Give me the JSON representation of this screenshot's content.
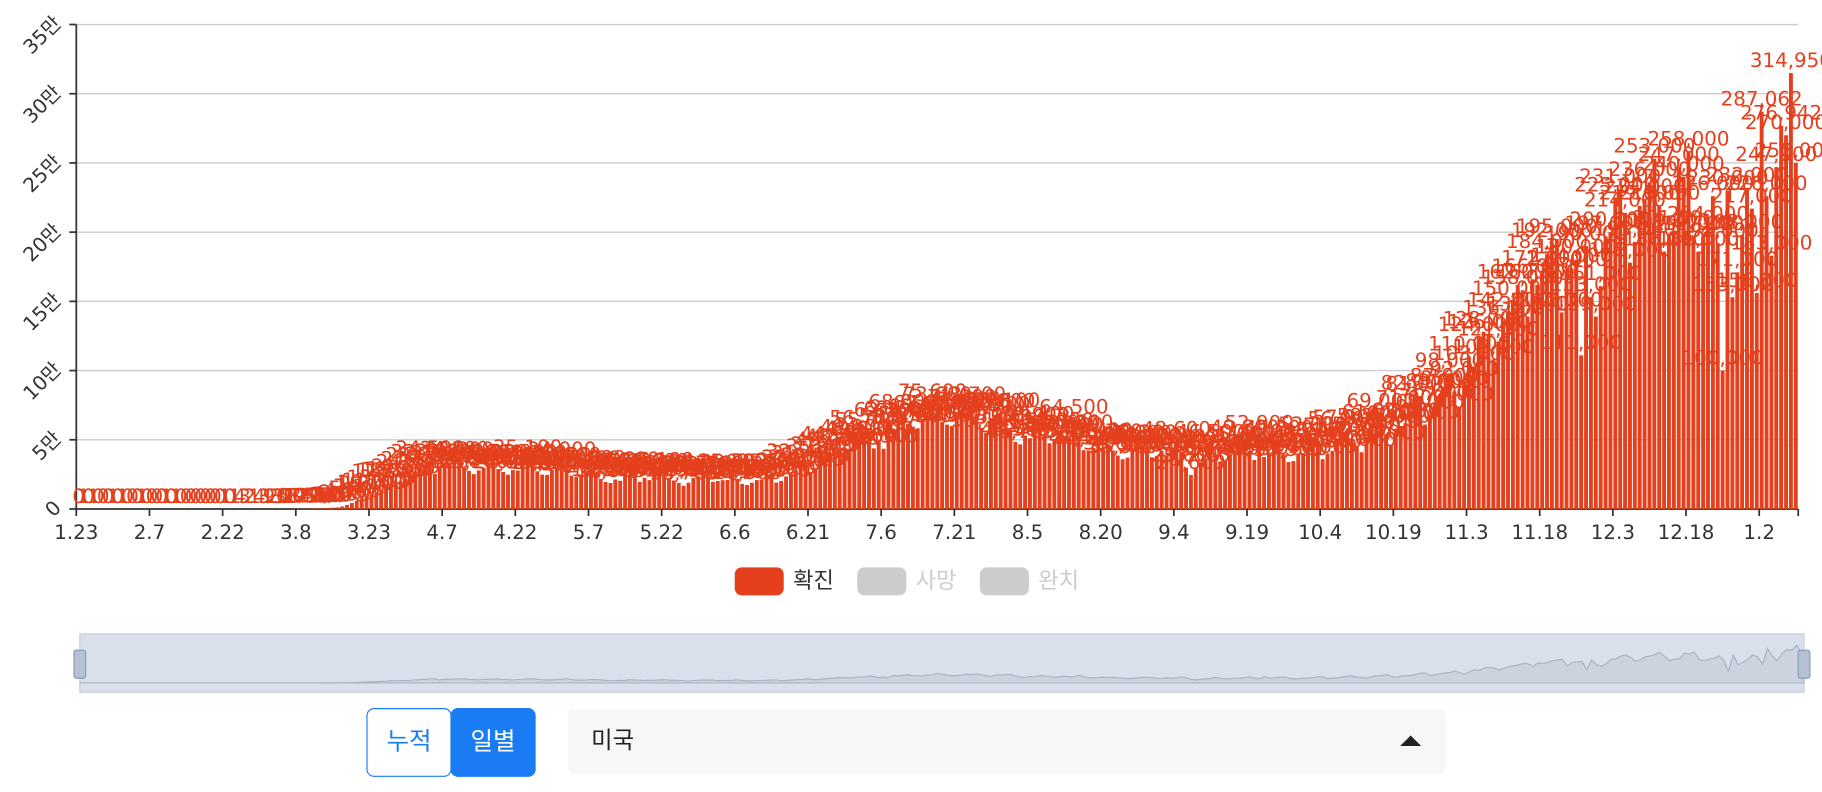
{
  "chart_data": {
    "type": "bar",
    "categories": [
      "1.23",
      null,
      null,
      null,
      null,
      null,
      null,
      null,
      null,
      null,
      null,
      null,
      null,
      null,
      null,
      "2.7",
      null,
      null,
      null,
      null,
      null,
      null,
      null,
      null,
      null,
      null,
      null,
      null,
      null,
      null,
      "2.22",
      null,
      null,
      null,
      null,
      null,
      null,
      null,
      null,
      null,
      null,
      null,
      null,
      null,
      null,
      "3.8",
      null,
      null,
      null,
      null,
      null,
      null,
      null,
      null,
      null,
      null,
      null,
      null,
      null,
      null,
      "3.23",
      null,
      null,
      null,
      null,
      null,
      null,
      null,
      null,
      null,
      null,
      null,
      null,
      null,
      null,
      "4.7",
      null,
      null,
      null,
      null,
      null,
      null,
      null,
      null,
      null,
      null,
      null,
      null,
      null,
      null,
      "4.22",
      null,
      null,
      null,
      null,
      null,
      null,
      null,
      null,
      null,
      null,
      null,
      null,
      null,
      null,
      "5.7",
      null,
      null,
      null,
      null,
      null,
      null,
      null,
      null,
      null,
      null,
      null,
      null,
      null,
      null,
      "5.22",
      null,
      null,
      null,
      null,
      null,
      null,
      null,
      null,
      null,
      null,
      null,
      null,
      null,
      null,
      "6.6",
      null,
      null,
      null,
      null,
      null,
      null,
      null,
      null,
      null,
      null,
      null,
      null,
      null,
      null,
      "6.21",
      null,
      null,
      null,
      null,
      null,
      null,
      null,
      null,
      null,
      null,
      null,
      null,
      null,
      null,
      "7.6",
      null,
      null,
      null,
      null,
      null,
      null,
      null,
      null,
      null,
      null,
      null,
      null,
      null,
      null,
      "7.21",
      null,
      null,
      null,
      null,
      null,
      null,
      null,
      null,
      null,
      null,
      null,
      null,
      null,
      null,
      "8.5",
      null,
      null,
      null,
      null,
      null,
      null,
      null,
      null,
      null,
      null,
      null,
      null,
      null,
      null,
      "8.20",
      null,
      null,
      null,
      null,
      null,
      null,
      null,
      null,
      null,
      null,
      null,
      null,
      null,
      null,
      "9.4",
      null,
      null,
      null,
      null,
      null,
      null,
      null,
      null,
      null,
      null,
      null,
      null,
      null,
      null,
      "9.19",
      null,
      null,
      null,
      null,
      null,
      null,
      null,
      null,
      null,
      null,
      null,
      null,
      null,
      null,
      "10.4",
      null,
      null,
      null,
      null,
      null,
      null,
      null,
      null,
      null,
      null,
      null,
      null,
      null,
      null,
      "10.19",
      null,
      null,
      null,
      null,
      null,
      null,
      null,
      null,
      null,
      null,
      null,
      null,
      null,
      null,
      "11.3",
      null,
      null,
      null,
      null,
      null,
      null,
      null,
      null,
      null,
      null,
      null,
      null,
      null,
      null,
      "11.18",
      null,
      null,
      null,
      null,
      null,
      null,
      null,
      null,
      null,
      null,
      null,
      null,
      null,
      null,
      "12.3",
      null,
      null,
      null,
      null,
      null,
      null,
      null,
      null,
      null,
      null,
      null,
      null,
      null,
      null,
      "12.18",
      null,
      null,
      null,
      null,
      null,
      null,
      null,
      null,
      null,
      null,
      null,
      null,
      null,
      null,
      "1.2",
      null,
      null,
      null,
      null,
      null,
      null,
      null
    ],
    "series": [
      {
        "name": "확진",
        "color": "#e5401d",
        "values": [
          0,
          1,
          0,
          1,
          0,
          0,
          0,
          1,
          0,
          1,
          0,
          0,
          0,
          1,
          0,
          0,
          0,
          0,
          1,
          0,
          1,
          0,
          0,
          0,
          0,
          0,
          0,
          0,
          0,
          0,
          1,
          0,
          1,
          4,
          3,
          2,
          1,
          4,
          3,
          9,
          13,
          20,
          31,
          68,
          79,
          105,
          120,
          180,
          290,
          430,
          560,
          730,
          960,
          1200,
          1800,
          2900,
          4300,
          5800,
          7100,
          9200,
          10100,
          11300,
          13700,
          17800,
          18500,
          19500,
          19900,
          21500,
          24800,
          27100,
          29800,
          32100,
          34500,
          25300,
          30100,
          31400,
          32500,
          34100,
          33800,
          29700,
          27600,
          25200,
          27900,
          29600,
          31800,
          31900,
          28800,
          26800,
          24800,
          28100,
          27800,
          31900,
          35100,
          31200,
          27200,
          24800,
          24600,
          28300,
          29700,
          34000,
          29800,
          24100,
          23400,
          24500,
          27400,
          27600,
          25800,
          21800,
          19500,
          18800,
          21300,
          20400,
          26600,
          25100,
          24200,
          19600,
          22500,
          20900,
          25600,
          26100,
          23300,
          21800,
          20600,
          18900,
          16700,
          19000,
          22400,
          23700,
          24900,
          23300,
          19600,
          20200,
          20800,
          21000,
          25300,
          21700,
          18100,
          17300,
          19000,
          20900,
          21300,
          25100,
          25100,
          19100,
          20300,
          23500,
          25700,
          27900,
          32500,
          31400,
          26700,
          29500,
          35900,
          37400,
          40900,
          44900,
          43200,
          42300,
          43500,
          49900,
          49000,
          56700,
          55000,
          43800,
          48600,
          43500,
          62200,
          58100,
          63500,
          68000,
          61700,
          59500,
          58300,
          65000,
          67400,
          75600,
          73600,
          63000,
          61000,
          59900,
          66700,
          71900,
          69800,
          73700,
          68600,
          58700,
          55100,
          65600,
          66800,
          68800,
          69100,
          57400,
          48500,
          46700,
          53100,
          51200,
          58900,
          59400,
          53200,
          47500,
          50100,
          54800,
          52700,
          51400,
          64500,
          53200,
          42500,
          42300,
          44100,
          47400,
          44600,
          46700,
          42300,
          38600,
          35900,
          37100,
          43000,
          45800,
          46200,
          43900,
          37400,
          38400,
          42000,
          38700,
          42800,
          48600,
          41400,
          29800,
          24600,
          30000,
          33800,
          36300,
          46500,
          39200,
          34400,
          34900,
          38800,
          39100,
          45000,
          49800,
          41900,
          35400,
          52900,
          37600,
          40100,
          46900,
          49300,
          39600,
          33900,
          34600,
          40100,
          40400,
          45000,
          52000,
          48000,
          36000,
          40000,
          42000,
          51000,
          56000,
          57000,
          48000,
          45000,
          41000,
          52000,
          58000,
          61000,
          69000,
          54000,
          46000,
          58000,
          60000,
          62000,
          71000,
          82000,
          81000,
          61000,
          68000,
          76000,
          83000,
          87000,
          98000,
          85000,
          74000,
          92000,
          110000,
          103000,
          124000,
          128000,
          126000,
          108000,
          121000,
          136000,
          142000,
          150000,
          162000,
          158000,
          139000,
          166000,
          162000,
          172000,
          184000,
          192000,
          195000,
          142000,
          171000,
          174000,
          180000,
          111000,
          190000,
          153000,
          139000,
          161000,
          197000,
          200000,
          225000,
          231000,
          214000,
          178000,
          193000,
          219000,
          224000,
          236000,
          253000,
          219000,
          186000,
          199000,
          201000,
          247000,
          240000,
          258000,
          197000,
          186000,
          197000,
          204000,
          226000,
          192000,
          100000,
          230000,
          153000,
          171000,
          198000,
          232000,
          217000,
          156000,
          287062,
          226000,
          183000,
          247000,
          276942,
          270000,
          314950,
          250000
        ],
        "value_labels": [
          "0",
          "1",
          "0",
          "1",
          "0",
          "0",
          "0",
          "1",
          "0",
          "1",
          "0",
          "0",
          "0",
          "1",
          "0",
          "0",
          "0",
          "0",
          "1",
          "0",
          "1",
          "0",
          "0",
          "0",
          "0",
          "0",
          "0",
          "0",
          "0",
          "0",
          "1",
          "0",
          "1",
          "4",
          "3",
          "2",
          "1",
          "4",
          "3",
          "9",
          "13",
          "20",
          "31",
          "68",
          "79",
          "105",
          "120",
          "180",
          "290",
          "430",
          "560",
          "730",
          "960",
          "1,200",
          "1,800",
          "2,900",
          "4,300",
          "5,800",
          "7,100",
          "9,200",
          "10,100",
          "11,300",
          "13,700",
          "17,800",
          "18,500",
          "19,500",
          "19,900",
          "21,500",
          "24,800",
          "27,100",
          "29,800",
          "32,100",
          "34,500",
          "25,300",
          "30,100",
          "31,400",
          "32,500",
          "34,100",
          "33,800",
          "29,700",
          "27,600",
          "25,200",
          "27,900",
          "29,600",
          "31,800",
          "31,900",
          "28,800",
          "26,800",
          "24,800",
          "28,100",
          "27,800",
          "31,900",
          "35,100",
          "31,200",
          "27,200",
          "24,800",
          "24,600",
          "28,300",
          "29,700",
          "34,000",
          "29,800",
          "24,100",
          "23,400",
          "24,500",
          "27,400",
          "27,600",
          "25,800",
          "21,800",
          "19,500",
          "18,800",
          "21,300",
          "20,400",
          "26,600",
          "25,100",
          "24,200",
          "19,600",
          "22,500",
          "20,900",
          "25,600",
          "26,100",
          "23,300",
          "21,800",
          "20,600",
          "18,900",
          "16,700",
          "19,000",
          "22,400",
          "23,700",
          "24,900",
          "23,300",
          "19,600",
          "20,200",
          "20,800",
          "21,000",
          "25,300",
          "21,700",
          "18,100",
          "17,300",
          "19,000",
          "20,900",
          "21,300",
          "25,100",
          "25,100",
          "19,100",
          "20,300",
          "23,500",
          "25,700",
          "27,900",
          "32,500",
          "31,400",
          "26,700",
          "29,500",
          "35,900",
          "37,400",
          "40,900",
          "44,900",
          "43,200",
          "42,300",
          "43,500",
          "49,900",
          "49,000",
          "56,700",
          "55,000",
          "43,800",
          "48,600",
          "43,500",
          "62,200",
          "58,100",
          "63,500",
          "68,000",
          "61,700",
          "59,500",
          "58,300",
          "65,000",
          "67,400",
          "75,600",
          "73,600",
          "63,000",
          "61,000",
          "59,900",
          "66,700",
          "71,900",
          "69,800",
          "73,700",
          "68,600",
          "58,700",
          "55,100",
          "65,600",
          "66,800",
          "68,800",
          "69,100",
          "57,400",
          "48,500",
          "46,700",
          "53,100",
          "51,200",
          "58,900",
          "59,400",
          "53,200",
          "47,500",
          "50,100",
          "54,800",
          "52,700",
          "51,400",
          "64,500",
          "53,200",
          "42,500",
          "42,300",
          "44,100",
          "47,400",
          "44,600",
          "46,700",
          "42,300",
          "38,600",
          "35,900",
          "37,100",
          "43,000",
          "45,800",
          "46,200",
          "43,900",
          "37,400",
          "38,400",
          "42,000",
          "38,700",
          "42,800",
          "48,600",
          "41,400",
          "29,800",
          "24,600",
          "30,000",
          "33,800",
          "36,300",
          "46,500",
          "39,200",
          "34,400",
          "34,900",
          "38,800",
          "39,100",
          "45,000",
          "49,800",
          "41,900",
          "35,400",
          "52,900",
          "37,600",
          "40,100",
          "46,900",
          "49,300",
          "39,600",
          "33,900",
          "34,600",
          "40,100",
          "40,400",
          "45,000",
          "52,000",
          "48,000",
          "36,000",
          "40,000",
          "42,000",
          "51,000",
          "56,000",
          "57,000",
          "48,000",
          "45,000",
          "41,000",
          "52,000",
          "58,000",
          "61,000",
          "69,000",
          "54,000",
          "46,000",
          "58,000",
          "60,000",
          "62,000",
          "71,000",
          "82,000",
          "81,000",
          "61,000",
          "68,000",
          "76,000",
          "83,000",
          "87,000",
          "98,000",
          "85,000",
          "74,000",
          "92,000",
          "110,000",
          "103,000",
          "124,000",
          "128,000",
          "126,000",
          "108,000",
          "121,000",
          "136,000",
          "142,000",
          "150,000",
          "162,000",
          "158,000",
          "139,000",
          "166,000",
          "162,000",
          "172,000",
          "184,000",
          "192,000",
          "195,000",
          "142,000",
          "171,000",
          "174,000",
          "180,000",
          "111,000",
          "190,000",
          "153,000",
          "139,000",
          "161,000",
          "197,000",
          "200,000",
          "225,000",
          "231,000",
          "214,000",
          "178,000",
          "193,000",
          "219,000",
          "224,000",
          "236,000",
          "253,000",
          "219,000",
          "186,000",
          "199,000",
          "201,000",
          "247,000",
          "240,000",
          "258,000",
          "197,000",
          "186,000",
          "197,000",
          "204,000",
          "226,000",
          "192,000",
          "100,000",
          "230,000",
          "153,000",
          "171,000",
          "198,000",
          "232,000",
          "217,000",
          "156,000",
          "287,062",
          "226,000",
          "183,000",
          "247,000",
          "276,942",
          "270,000",
          "314,950",
          "250,000"
        ]
      }
    ],
    "legend_items": [
      {
        "name": "확진",
        "color": "#e5401d",
        "active": true
      },
      {
        "name": "사망",
        "color": "#cccccc",
        "active": false
      },
      {
        "name": "완치",
        "color": "#cccccc",
        "active": false
      }
    ],
    "ylim": [
      0,
      350000
    ],
    "yticks": [
      0,
      {
        "value": 50000,
        "label": "5만"
      },
      {
        "value": 100000,
        "label": "10만"
      },
      {
        "value": 150000,
        "label": "15만"
      },
      {
        "value": 200000,
        "label": "20만"
      },
      {
        "value": 250000,
        "label": "25만"
      },
      {
        "value": 300000,
        "label": "30만"
      },
      {
        "value": 350000,
        "label": "35만"
      }
    ],
    "grid": true
  },
  "controls": {
    "mode_buttons": [
      "누적",
      "일별"
    ],
    "selected_mode": 1,
    "country": "미국"
  }
}
